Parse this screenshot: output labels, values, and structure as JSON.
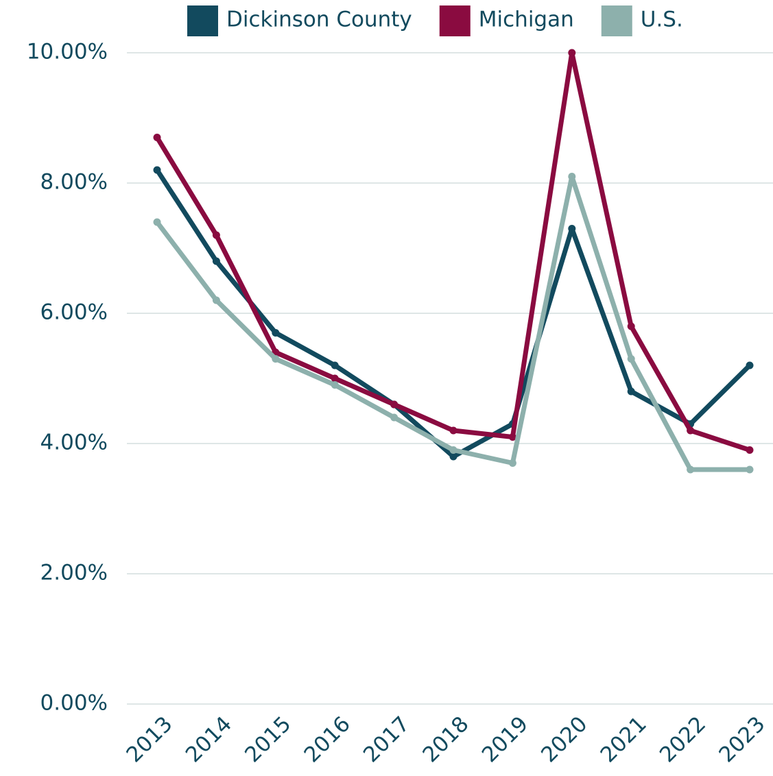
{
  "chart_data": {
    "type": "line",
    "categories": [
      "2013",
      "2014",
      "2015",
      "2016",
      "2017",
      "2018",
      "2019",
      "2020",
      "2021",
      "2022",
      "2023"
    ],
    "series": [
      {
        "name": "Dickinson County",
        "color": "#124a5e",
        "values": [
          8.2,
          6.8,
          5.7,
          5.2,
          4.6,
          3.8,
          4.3,
          7.3,
          4.8,
          4.3,
          5.2
        ]
      },
      {
        "name": "Michigan",
        "color": "#8a0b40",
        "values": [
          8.7,
          7.2,
          5.4,
          5.0,
          4.6,
          4.2,
          4.1,
          10.0,
          5.8,
          4.2,
          3.9
        ]
      },
      {
        "name": "U.S.",
        "color": "#8db0ac",
        "values": [
          7.4,
          6.2,
          5.3,
          4.9,
          4.4,
          3.9,
          3.7,
          8.1,
          5.3,
          3.6,
          3.6
        ]
      }
    ],
    "ylim": [
      0,
      10
    ],
    "yticks": [
      {
        "value": 0,
        "label": "0.00%"
      },
      {
        "value": 2,
        "label": "2.00%"
      },
      {
        "value": 4,
        "label": "4.00%"
      },
      {
        "value": 6,
        "label": "6.00%"
      },
      {
        "value": 8,
        "label": "8.00%"
      },
      {
        "value": 10,
        "label": "10.00%"
      }
    ],
    "grid": true,
    "legend": "top"
  }
}
